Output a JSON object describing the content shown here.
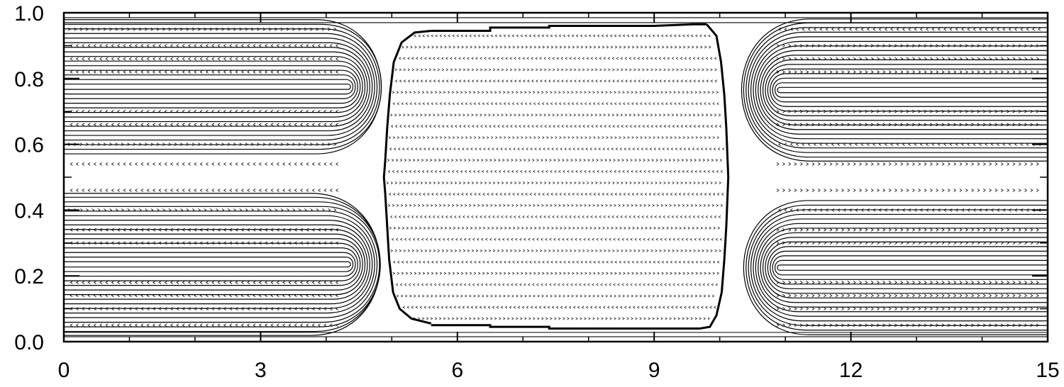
{
  "chart_data": {
    "type": "line",
    "title": "",
    "xlabel": "",
    "ylabel": "",
    "xlim": [
      0,
      15
    ],
    "ylim": [
      0,
      1
    ],
    "x_ticks": [
      0,
      3,
      6,
      9,
      12,
      15
    ],
    "x_tick_labels": [
      "0",
      "3",
      "6",
      "9",
      "12",
      "15"
    ],
    "y_ticks": [
      0,
      0.2,
      0.4,
      0.6,
      0.8,
      1.0
    ],
    "y_tick_labels": [
      "0.0",
      "0.2",
      "0.4",
      "0.6",
      "0.8",
      "1.0"
    ],
    "grid": false,
    "interface": {
      "left": [
        [
          5.6,
          0.055
        ],
        [
          5.3,
          0.07
        ],
        [
          5.12,
          0.1
        ],
        [
          5.02,
          0.15
        ],
        [
          4.96,
          0.25
        ],
        [
          4.93,
          0.35
        ],
        [
          4.9,
          0.45
        ],
        [
          4.88,
          0.5
        ],
        [
          4.9,
          0.55
        ],
        [
          4.93,
          0.65
        ],
        [
          4.97,
          0.75
        ],
        [
          5.03,
          0.85
        ],
        [
          5.15,
          0.91
        ],
        [
          5.35,
          0.94
        ],
        [
          5.6,
          0.945
        ]
      ],
      "top": [
        [
          5.6,
          0.945
        ],
        [
          6.5,
          0.945
        ],
        [
          6.5,
          0.955
        ],
        [
          7.4,
          0.955
        ],
        [
          7.4,
          0.96
        ],
        [
          9.0,
          0.96
        ],
        [
          9.6,
          0.965
        ],
        [
          9.8,
          0.965
        ]
      ],
      "right": [
        [
          9.8,
          0.965
        ],
        [
          9.95,
          0.93
        ],
        [
          10.02,
          0.85
        ],
        [
          10.07,
          0.75
        ],
        [
          10.1,
          0.65
        ],
        [
          10.12,
          0.55
        ],
        [
          10.13,
          0.5
        ],
        [
          10.12,
          0.45
        ],
        [
          10.1,
          0.35
        ],
        [
          10.07,
          0.25
        ],
        [
          10.03,
          0.15
        ],
        [
          9.95,
          0.08
        ],
        [
          9.85,
          0.045
        ],
        [
          9.7,
          0.04
        ]
      ],
      "bottom": [
        [
          9.7,
          0.04
        ],
        [
          7.4,
          0.04
        ],
        [
          7.4,
          0.045
        ],
        [
          6.5,
          0.045
        ],
        [
          6.5,
          0.05
        ],
        [
          5.6,
          0.05
        ]
      ]
    },
    "streamlines": {
      "left_loop_centers": [
        0.775,
        0.235
      ],
      "right_loop_centers": [
        0.765,
        0.225
      ],
      "center_channel_lines": 26
    }
  }
}
